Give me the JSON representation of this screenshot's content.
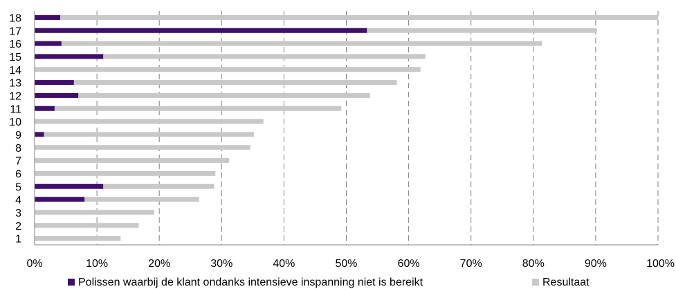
{
  "chart_data": {
    "type": "bar",
    "orientation": "horizontal",
    "stacking": "overlay",
    "categories": [
      "1",
      "2",
      "3",
      "4",
      "5",
      "6",
      "7",
      "8",
      "9",
      "10",
      "11",
      "12",
      "13",
      "14",
      "15",
      "16",
      "17",
      "18"
    ],
    "series": [
      {
        "name": "Polissen waarbij de klant ondanks intensieve inspanning niet is bereikt",
        "color": "#3f0f6b",
        "values": [
          0,
          0,
          0,
          8,
          11,
          0,
          0,
          0,
          1.5,
          0,
          3.2,
          7,
          6.3,
          0,
          11,
          4.3,
          53.3,
          4.1
        ]
      },
      {
        "name": "Resultaat",
        "color": "#c8c8c8",
        "values": [
          13.8,
          16.7,
          19.2,
          26.4,
          28.8,
          29,
          31.2,
          34.6,
          35.2,
          36.7,
          49.2,
          53.8,
          58.1,
          61.9,
          62.7,
          81.4,
          90.2,
          100
        ]
      }
    ],
    "x_ticks": [
      "0%",
      "10%",
      "20%",
      "30%",
      "40%",
      "50%",
      "60%",
      "70%",
      "80%",
      "90%",
      "100%"
    ],
    "xlim": [
      0,
      100
    ],
    "x_unit": "%",
    "grid": "vertical-dashed",
    "legend_position": "bottom"
  }
}
